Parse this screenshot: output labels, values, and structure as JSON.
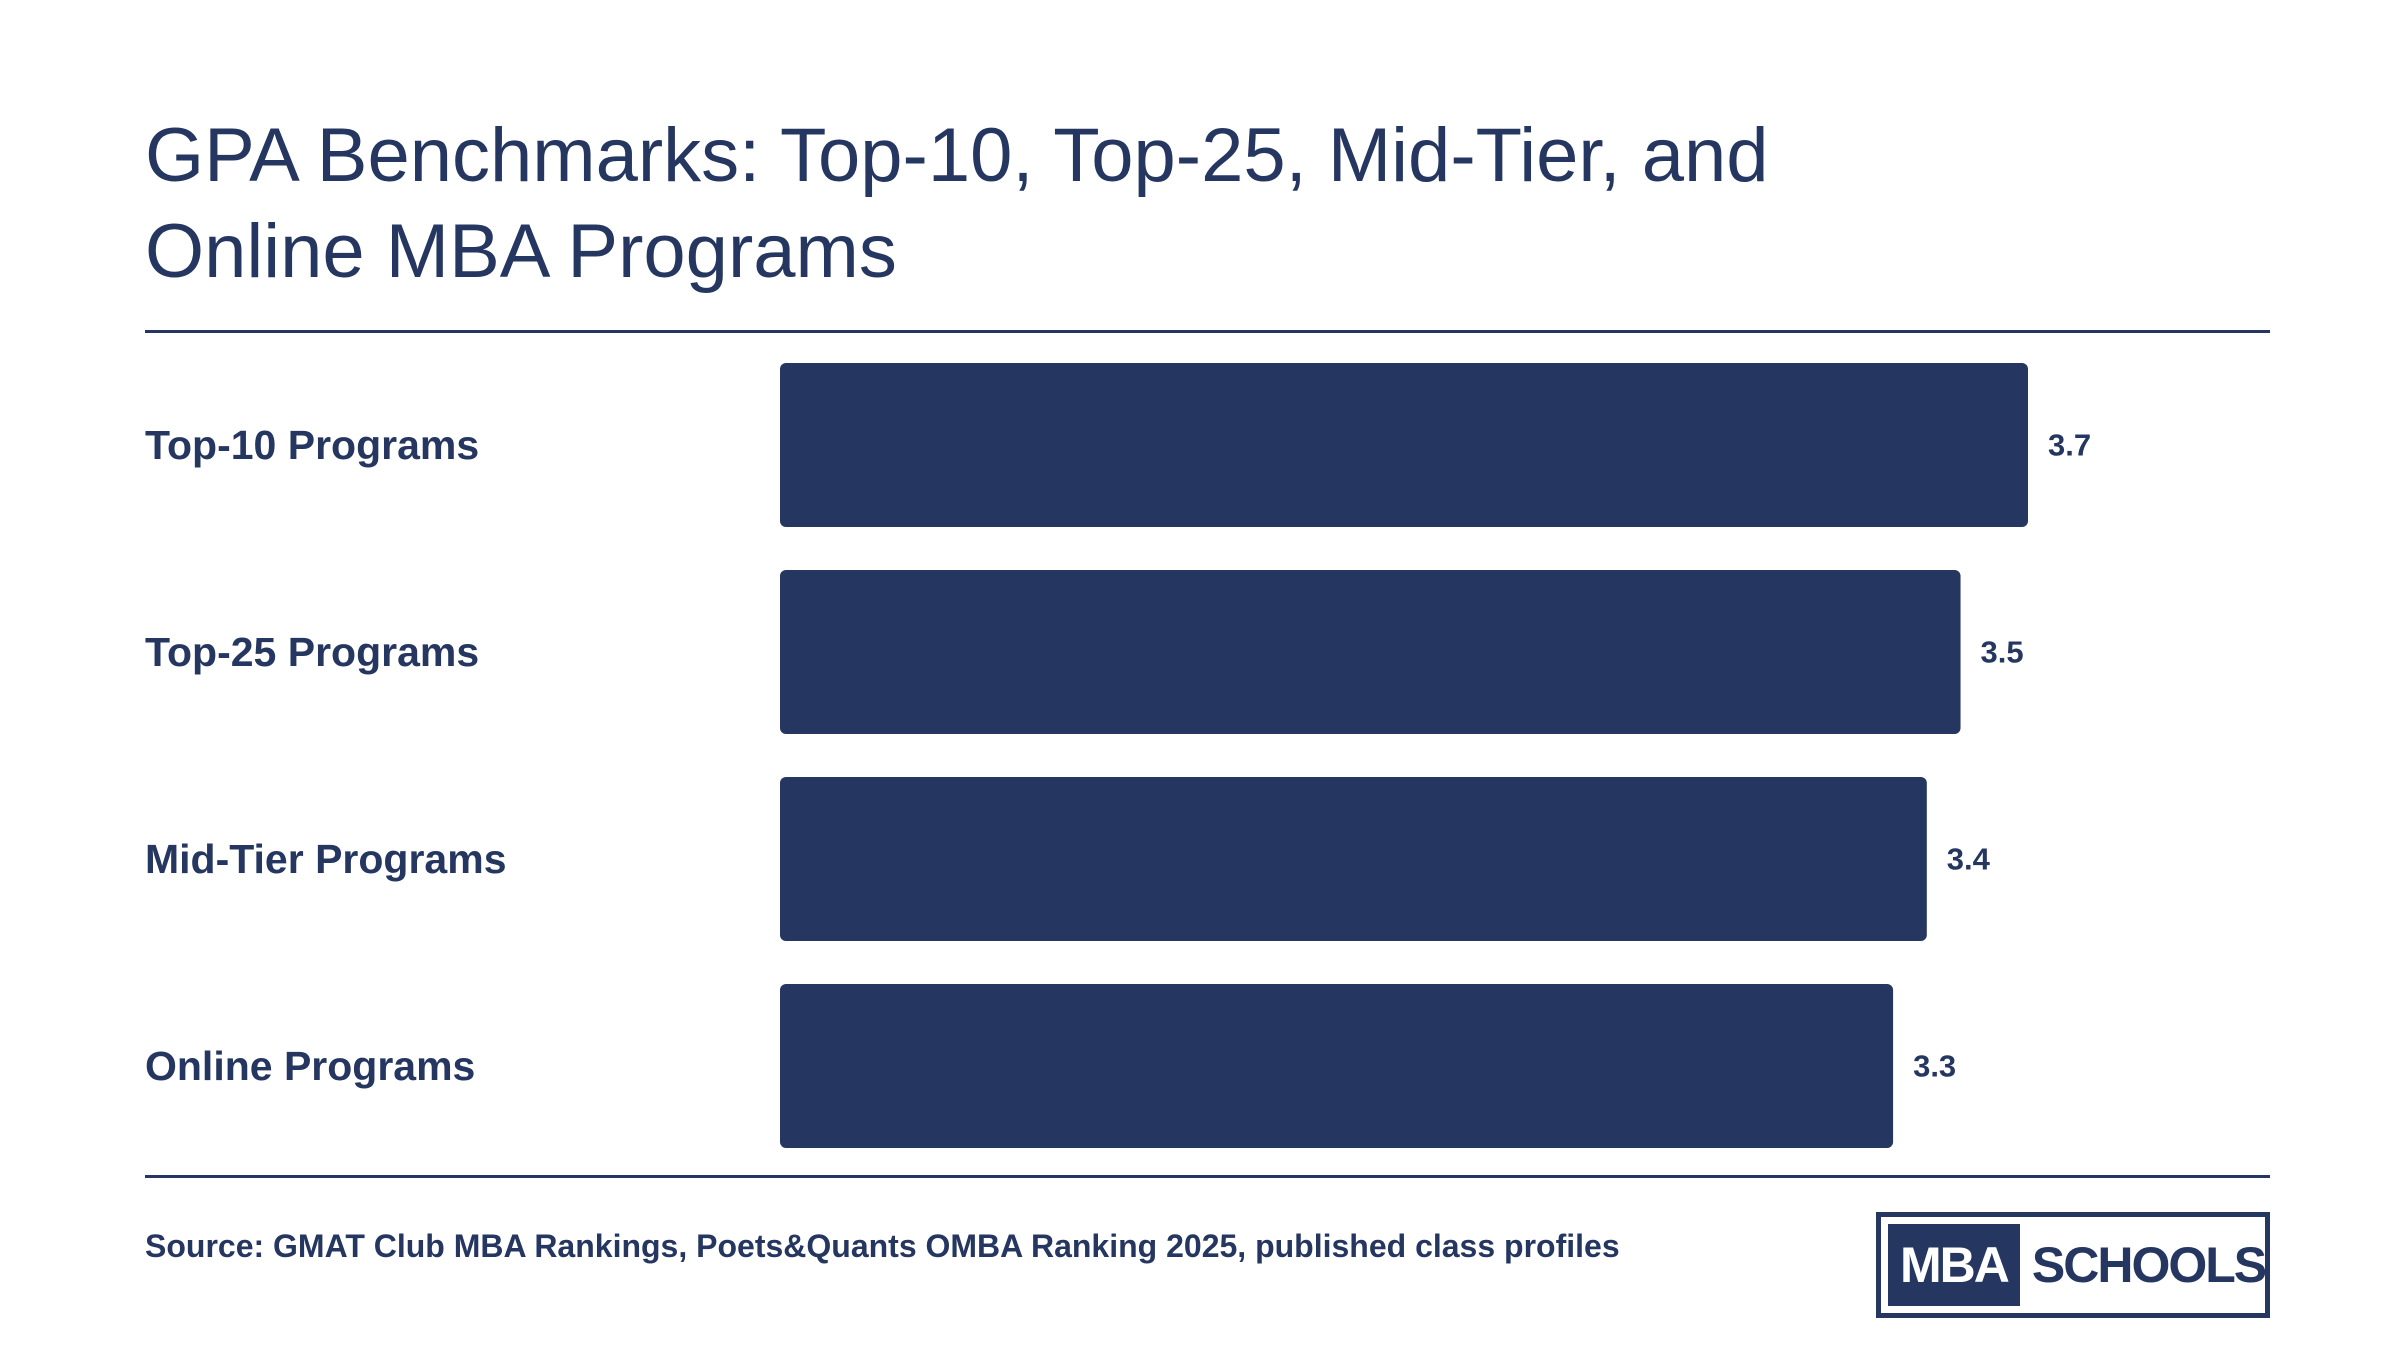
{
  "header": {
    "title_line1": "GPA Benchmarks: Top-10, Top-25, Mid-Tier, and",
    "title_line2": "Online MBA Programs"
  },
  "footer": {
    "source": "Source: GMAT Club MBA Rankings, Poets&Quants OMBA Ranking 2025, published class profiles"
  },
  "logo": {
    "left_text": "MBA",
    "right_text": "SCHOOLS"
  },
  "colors": {
    "bar": "#253760",
    "text": "#253760",
    "background": "#ffffff"
  },
  "chart_data": {
    "type": "bar",
    "orientation": "horizontal",
    "title": "GPA Benchmarks: Top-10, Top-25, Mid-Tier, and Online MBA Programs",
    "categories": [
      "Top-10 Programs",
      "Top-25 Programs",
      "Mid-Tier Programs",
      "Online Programs"
    ],
    "values": [
      3.7,
      3.5,
      3.4,
      3.3
    ],
    "value_labels": [
      "3.7",
      "3.5",
      "3.4",
      "3.3"
    ],
    "xlim": [
      0,
      3.7
    ],
    "grid": false,
    "legend": "none"
  }
}
